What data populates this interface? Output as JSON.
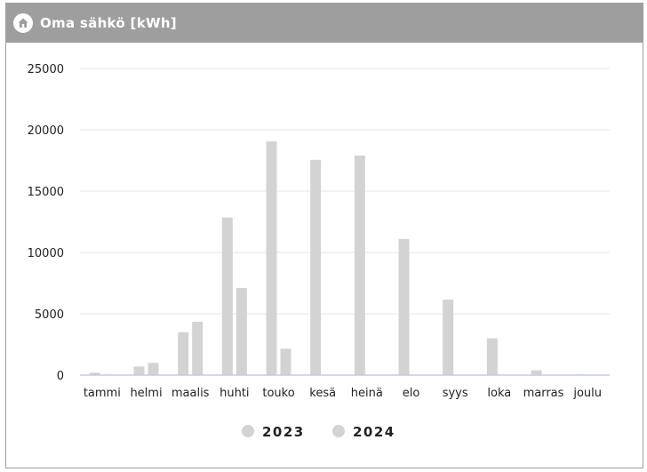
{
  "header": {
    "title": "Oma sähkö [kWh]",
    "icon": "house-icon"
  },
  "colors": {
    "header_bg": "#9e9e9e",
    "bar_2023": "#d3d3d3",
    "bar_2024": "#d3d3d3",
    "baseline": "#c5c8e8",
    "grid": "#e6e6e6"
  },
  "chart_data": {
    "type": "bar",
    "categories": [
      "tammi",
      "helmi",
      "maalis",
      "huhti",
      "touko",
      "kesä",
      "heinä",
      "elo",
      "syys",
      "loka",
      "marras",
      "joulu"
    ],
    "series": [
      {
        "name": "2023",
        "values": [
          200,
          700,
          3500,
          12850,
          19050,
          17550,
          17900,
          11100,
          6150,
          3000,
          400,
          50
        ]
      },
      {
        "name": "2024",
        "values": [
          50,
          1000,
          4350,
          7100,
          2150,
          0,
          0,
          0,
          0,
          0,
          0,
          0
        ]
      }
    ],
    "ylim": [
      0,
      25000
    ],
    "yticks": [
      0,
      5000,
      10000,
      15000,
      20000,
      25000
    ],
    "grid": true,
    "legend": "bottom-center",
    "title": "",
    "xlabel": "",
    "ylabel": ""
  }
}
